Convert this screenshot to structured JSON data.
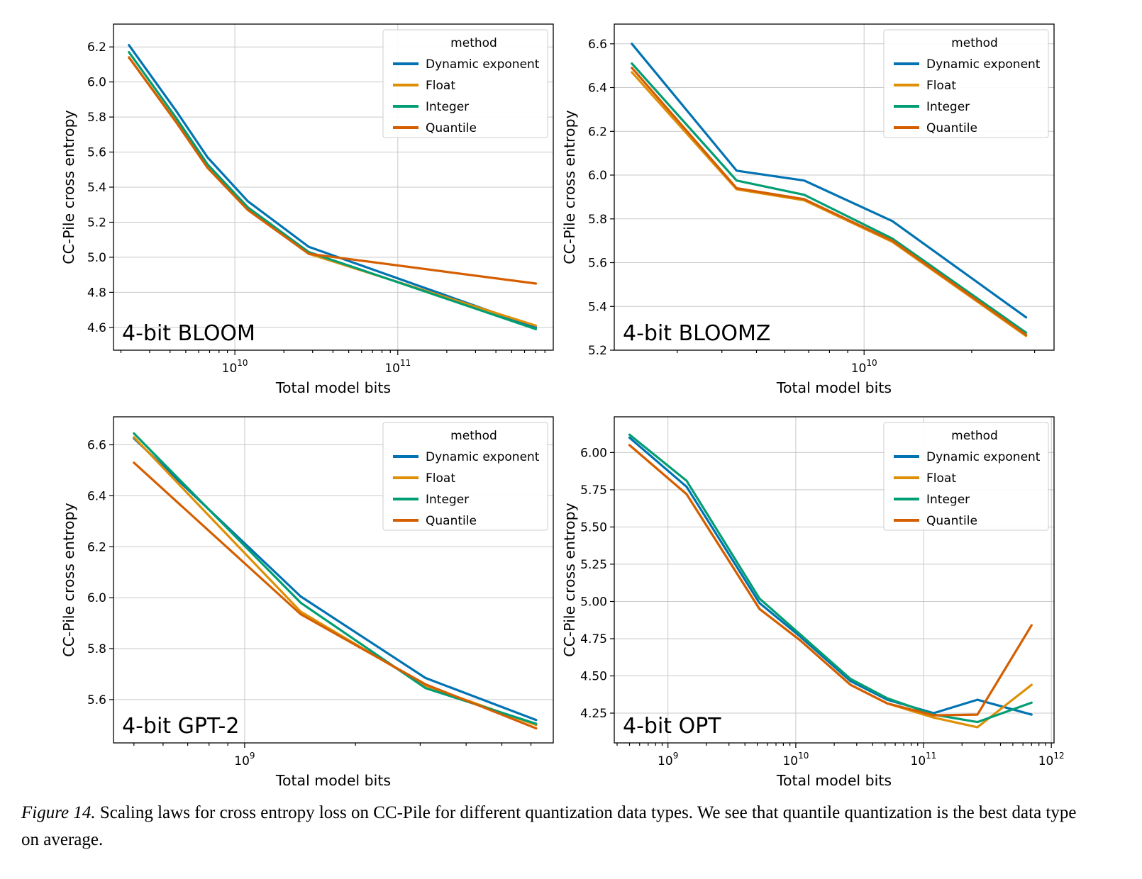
{
  "figure": {
    "caption_label": "Figure 14.",
    "caption_text": " Scaling laws for cross entropy loss on CC-Pile for different quantization data types. We see that quantile quantization is the best data type on average."
  },
  "palette": {
    "dynamic_exponent": "#0173b2",
    "float": "#de8f05",
    "integer": "#029e73",
    "quantile": "#d55e00"
  },
  "chart_data": [
    {
      "type": "line",
      "id": "chart-4bit-bloom",
      "title": "4-bit BLOOM",
      "xlabel": "Total model bits",
      "ylabel": "CC-Pile cross entropy",
      "xscale": "log",
      "xlim": [
        1800000000.0,
        900000000000.0
      ],
      "ylim": [
        4.47,
        6.33
      ],
      "xticks": [
        10000000000.0,
        100000000000.0
      ],
      "yticks": [
        4.6,
        4.8,
        5.0,
        5.2,
        5.4,
        5.6,
        5.8,
        6.0,
        6.2
      ],
      "ytick_decimals": 1,
      "grid": true,
      "legend_title": "method",
      "legend_position": "upper right",
      "series": [
        {
          "name": "Dynamic exponent",
          "color": "#0173b2",
          "x": [
            2240000000.0,
            4400000000.0,
            6800000000.0,
            12000000000.0,
            28400000000.0,
            704000000000.0
          ],
          "y": [
            6.21,
            5.83,
            5.57,
            5.32,
            5.06,
            4.6
          ]
        },
        {
          "name": "Float",
          "color": "#de8f05",
          "x": [
            2240000000.0,
            4400000000.0,
            6800000000.0,
            12000000000.0,
            28400000000.0,
            704000000000.0
          ],
          "y": [
            6.14,
            5.77,
            5.52,
            5.275,
            5.02,
            4.61
          ]
        },
        {
          "name": "Integer",
          "color": "#029e73",
          "x": [
            2240000000.0,
            4400000000.0,
            6800000000.0,
            12000000000.0,
            28400000000.0,
            704000000000.0
          ],
          "y": [
            6.17,
            5.79,
            5.53,
            5.285,
            5.03,
            4.59
          ]
        },
        {
          "name": "Quantile",
          "color": "#d55e00",
          "x": [
            2240000000.0,
            4400000000.0,
            6800000000.0,
            12000000000.0,
            28400000000.0,
            704000000000.0
          ],
          "y": [
            6.14,
            5.765,
            5.51,
            5.27,
            5.02,
            4.85
          ]
        }
      ]
    },
    {
      "type": "line",
      "id": "chart-4bit-bloomz",
      "title": "4-bit BLOOMZ",
      "xlabel": "Total model bits",
      "ylabel": "CC-Pile cross entropy",
      "xscale": "log",
      "xlim": [
        2000000000.0,
        34000000000.0
      ],
      "ylim": [
        5.2,
        6.69
      ],
      "xticks": [
        10000000000.0
      ],
      "yticks": [
        5.2,
        5.4,
        5.6,
        5.8,
        6.0,
        6.2,
        6.4,
        6.6
      ],
      "ytick_decimals": 1,
      "grid": true,
      "legend_title": "method",
      "legend_position": "upper right",
      "series": [
        {
          "name": "Dynamic exponent",
          "color": "#0173b2",
          "x": [
            2240000000.0,
            4400000000.0,
            6800000000.0,
            12000000000.0,
            28400000000.0
          ],
          "y": [
            6.6,
            6.02,
            5.975,
            5.79,
            5.35
          ]
        },
        {
          "name": "Float",
          "color": "#de8f05",
          "x": [
            2240000000.0,
            4400000000.0,
            6800000000.0,
            12000000000.0,
            28400000000.0
          ],
          "y": [
            6.47,
            5.935,
            5.885,
            5.695,
            5.265
          ]
        },
        {
          "name": "Integer",
          "color": "#029e73",
          "x": [
            2240000000.0,
            4400000000.0,
            6800000000.0,
            12000000000.0,
            28400000000.0
          ],
          "y": [
            6.51,
            5.975,
            5.91,
            5.71,
            5.28
          ]
        },
        {
          "name": "Quantile",
          "color": "#d55e00",
          "x": [
            2240000000.0,
            4400000000.0,
            6800000000.0,
            12000000000.0,
            28400000000.0
          ],
          "y": [
            6.49,
            5.94,
            5.89,
            5.7,
            5.27
          ]
        }
      ]
    },
    {
      "type": "line",
      "id": "chart-4bit-gpt2",
      "title": "4-bit GPT-2",
      "xlabel": "Total model bits",
      "ylabel": "CC-Pile cross entropy",
      "xscale": "log",
      "xlim": [
        440000000.0,
        6900000000.0
      ],
      "ylim": [
        5.43,
        6.71
      ],
      "xticks": [
        1000000000.0
      ],
      "yticks": [
        5.6,
        5.8,
        6.0,
        6.2,
        6.4,
        6.6
      ],
      "ytick_decimals": 1,
      "grid": true,
      "legend_title": "method",
      "legend_position": "upper right",
      "series": [
        {
          "name": "Dynamic exponent",
          "color": "#0173b2",
          "x": [
            500000000.0,
            1420000000.0,
            3100000000.0,
            6200000000.0
          ],
          "y": [
            6.625,
            6.005,
            5.685,
            5.52
          ]
        },
        {
          "name": "Float",
          "color": "#de8f05",
          "x": [
            500000000.0,
            1420000000.0,
            3100000000.0,
            6200000000.0
          ],
          "y": [
            6.63,
            5.945,
            5.655,
            5.5
          ]
        },
        {
          "name": "Integer",
          "color": "#029e73",
          "x": [
            500000000.0,
            1420000000.0,
            3100000000.0,
            6200000000.0
          ],
          "y": [
            6.645,
            5.98,
            5.645,
            5.505
          ]
        },
        {
          "name": "Quantile",
          "color": "#d55e00",
          "x": [
            500000000.0,
            1420000000.0,
            3100000000.0,
            6200000000.0
          ],
          "y": [
            6.53,
            5.935,
            5.66,
            5.487
          ]
        }
      ]
    },
    {
      "type": "line",
      "id": "chart-4bit-opt",
      "title": "4-bit OPT",
      "xlabel": "Total model bits",
      "ylabel": "CC-Pile cross entropy",
      "xscale": "log",
      "xlim": [
        380000000.0,
        1050000000000.0
      ],
      "ylim": [
        4.05,
        6.24
      ],
      "xticks": [
        1000000000.0,
        10000000000.0,
        100000000000.0,
        1000000000000.0
      ],
      "yticks": [
        4.25,
        4.5,
        4.75,
        5.0,
        5.25,
        5.5,
        5.75,
        6.0
      ],
      "ytick_decimals": 2,
      "grid": true,
      "legend_title": "method",
      "legend_position": "upper right",
      "series": [
        {
          "name": "Dynamic exponent",
          "color": "#0173b2",
          "x": [
            500000000.0,
            1400000000.0,
            5200000000.0,
            10800000000.0,
            26800000000.0,
            52000000000.0,
            120000000000.0,
            264000000000.0,
            700000000000.0
          ],
          "y": [
            6.1,
            5.77,
            4.99,
            4.765,
            4.465,
            4.34,
            4.25,
            4.34,
            4.24
          ]
        },
        {
          "name": "Float",
          "color": "#de8f05",
          "x": [
            500000000.0,
            1400000000.0,
            5200000000.0,
            10800000000.0,
            26800000000.0,
            52000000000.0,
            120000000000.0,
            264000000000.0,
            700000000000.0
          ],
          "y": [
            6.05,
            5.72,
            4.95,
            4.74,
            4.44,
            4.315,
            4.22,
            4.155,
            4.44
          ]
        },
        {
          "name": "Integer",
          "color": "#029e73",
          "x": [
            500000000.0,
            1400000000.0,
            5200000000.0,
            10800000000.0,
            26800000000.0,
            52000000000.0,
            120000000000.0,
            264000000000.0,
            700000000000.0
          ],
          "y": [
            6.12,
            5.81,
            5.02,
            4.78,
            4.48,
            4.35,
            4.24,
            4.19,
            4.32
          ]
        },
        {
          "name": "Quantile",
          "color": "#d55e00",
          "x": [
            500000000.0,
            1400000000.0,
            5200000000.0,
            10800000000.0,
            26800000000.0,
            52000000000.0,
            120000000000.0,
            264000000000.0,
            700000000000.0
          ],
          "y": [
            6.05,
            5.72,
            4.95,
            4.74,
            4.44,
            4.315,
            4.235,
            4.24,
            4.84
          ]
        }
      ]
    }
  ]
}
